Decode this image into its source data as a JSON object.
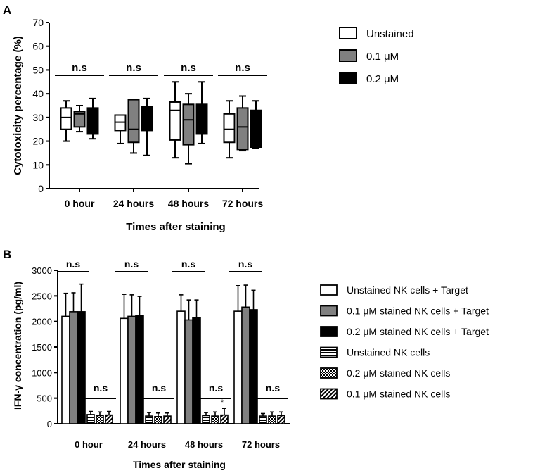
{
  "panels": {
    "a": {
      "label": "A"
    },
    "b": {
      "label": "B"
    }
  },
  "chart_data": [
    {
      "type": "box",
      "panel": "A",
      "ylabel": "Cytotoxicity percentage (%)",
      "xlabel": "Times after staining",
      "ylim": [
        0,
        70
      ],
      "yticks": [
        "0",
        "10",
        "20",
        "30",
        "40",
        "50",
        "60",
        "70"
      ],
      "categories": [
        "0 hour",
        "24 hours",
        "48 hours",
        "72 hours"
      ],
      "significance": [
        "n.s",
        "n.s",
        "n.s",
        "n.s"
      ],
      "legend_position": "top-right",
      "series": [
        {
          "name": "Unstained",
          "color": "#ffffff",
          "boxes": [
            {
              "min": 20,
              "q1": 25,
              "median": 30,
              "q3": 34,
              "max": 37
            },
            {
              "min": 19,
              "q1": 24.5,
              "median": 28,
              "q3": 31,
              "max": 31
            },
            {
              "min": 13,
              "q1": 20.5,
              "median": 33,
              "q3": 36.5,
              "max": 45
            },
            {
              "min": 13,
              "q1": 19.5,
              "median": 25,
              "q3": 31.5,
              "max": 37
            }
          ]
        },
        {
          "name": "0.1 μM",
          "color": "#808080",
          "boxes": [
            {
              "min": 24,
              "q1": 26,
              "median": 31.5,
              "q3": 32.5,
              "max": 35
            },
            {
              "min": 15,
              "q1": 19.5,
              "median": 25,
              "q3": 37.5,
              "max": 37.5
            },
            {
              "min": 10.5,
              "q1": 18.5,
              "median": 29,
              "q3": 35.5,
              "max": 40
            },
            {
              "min": 16,
              "q1": 16.5,
              "median": 26,
              "q3": 34,
              "max": 39
            }
          ]
        },
        {
          "name": "0.2 μM",
          "color": "#000000",
          "boxes": [
            {
              "min": 21,
              "q1": 23,
              "median": 32,
              "q3": 34,
              "max": 38
            },
            {
              "min": 14,
              "q1": 24.5,
              "median": 34,
              "q3": 34.5,
              "max": 38
            },
            {
              "min": 19,
              "q1": 23,
              "median": 32,
              "q3": 35.5,
              "max": 45
            },
            {
              "min": 17,
              "q1": 17.5,
              "median": 31,
              "q3": 33,
              "max": 37
            }
          ]
        }
      ]
    },
    {
      "type": "bar",
      "panel": "B",
      "ylabel": "IFN-γ concentration (pg/ml)",
      "xlabel": "Times after staining",
      "ylim": [
        0,
        3000
      ],
      "yticks": [
        "0",
        "500",
        "1000",
        "1500",
        "2000",
        "2500",
        "3000"
      ],
      "categories": [
        "0 hour",
        "24 hours",
        "48 hours",
        "72 hours"
      ],
      "significance_with_target": [
        "n.s",
        "n.s",
        "n.s",
        "n.s"
      ],
      "significance_without_target": [
        "n.s",
        "n.s",
        "n.s",
        "n.s"
      ],
      "annotations": [
        "*"
      ],
      "legend_position": "right",
      "series": [
        {
          "name": "Unstained NK cells + Target",
          "pattern": "white",
          "values": [
            2100,
            2060,
            2200,
            2200
          ],
          "errors": [
            450,
            470,
            320,
            500
          ]
        },
        {
          "name": "0.1 μM stained NK cells + Target",
          "pattern": "gray",
          "values": [
            2190,
            2100,
            2030,
            2280
          ],
          "errors": [
            370,
            420,
            390,
            430
          ]
        },
        {
          "name": "0.2 μM stained NK cells + Target",
          "pattern": "black",
          "values": [
            2190,
            2120,
            2080,
            2230
          ],
          "errors": [
            540,
            370,
            340,
            380
          ]
        },
        {
          "name": "Unstained NK cells",
          "pattern": "hstripe",
          "values": [
            180,
            150,
            160,
            150
          ],
          "errors": [
            60,
            70,
            60,
            50
          ]
        },
        {
          "name": "0.2 μM stained NK cells",
          "pattern": "check",
          "values": [
            160,
            140,
            150,
            150
          ],
          "errors": [
            70,
            70,
            80,
            80
          ]
        },
        {
          "name": "0.1 μM stained NK cells",
          "pattern": "diag",
          "values": [
            170,
            150,
            170,
            160
          ],
          "errors": [
            70,
            60,
            130,
            70
          ]
        }
      ]
    }
  ]
}
